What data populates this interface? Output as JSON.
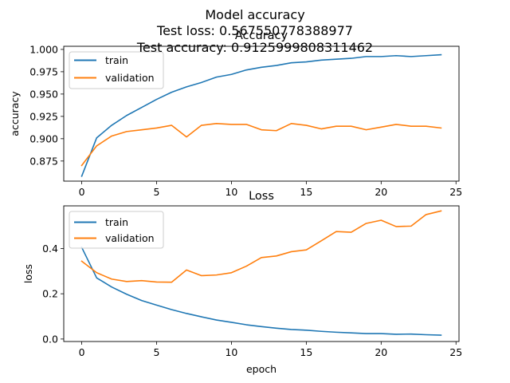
{
  "figure": {
    "suptitle_lines": [
      "Model accuracy",
      "Test loss: 0.567550778388977",
      "Test accuracy: 0.9125999808311462"
    ],
    "colors": {
      "train": "#1f77b4",
      "validation": "#ff7f0e"
    }
  },
  "chart_data": [
    {
      "type": "line",
      "title": "Accuracy",
      "xlabel": "",
      "ylabel": "accuracy",
      "xlim": [
        -1.2,
        25.2
      ],
      "ylim": [
        0.8525,
        1.0035
      ],
      "xticks": [
        0,
        5,
        10,
        15,
        20,
        25
      ],
      "yticks": [
        0.875,
        0.9,
        0.925,
        0.95,
        0.975,
        1.0
      ],
      "ytick_labels": [
        "0.875",
        "0.900",
        "0.925",
        "0.950",
        "0.975",
        "1.000"
      ],
      "legend": "top-left",
      "grid": false,
      "x": [
        0,
        1,
        2,
        3,
        4,
        5,
        6,
        7,
        8,
        9,
        10,
        11,
        12,
        13,
        14,
        15,
        16,
        17,
        18,
        19,
        20,
        21,
        22,
        23,
        24
      ],
      "series": [
        {
          "name": "train",
          "color": "#1f77b4",
          "values": [
            0.858,
            0.901,
            0.915,
            0.926,
            0.935,
            0.944,
            0.952,
            0.958,
            0.963,
            0.969,
            0.972,
            0.977,
            0.98,
            0.982,
            0.985,
            0.986,
            0.988,
            0.989,
            0.99,
            0.992,
            0.992,
            0.993,
            0.992,
            0.993,
            0.994
          ]
        },
        {
          "name": "validation",
          "color": "#ff7f0e",
          "values": [
            0.87,
            0.892,
            0.903,
            0.908,
            0.91,
            0.912,
            0.915,
            0.902,
            0.915,
            0.917,
            0.916,
            0.916,
            0.91,
            0.909,
            0.917,
            0.915,
            0.911,
            0.914,
            0.914,
            0.91,
            0.913,
            0.916,
            0.914,
            0.914,
            0.912
          ]
        }
      ]
    },
    {
      "type": "line",
      "title": "Loss",
      "xlabel": "epoch",
      "ylabel": "loss",
      "xlim": [
        -1.2,
        25.2
      ],
      "ylim": [
        -0.011,
        0.5885
      ],
      "xticks": [
        0,
        5,
        10,
        15,
        20,
        25
      ],
      "yticks": [
        0.0,
        0.2,
        0.4
      ],
      "ytick_labels": [
        "0.0",
        "0.2",
        "0.4"
      ],
      "legend": "top-left",
      "grid": false,
      "x": [
        0,
        1,
        2,
        3,
        4,
        5,
        6,
        7,
        8,
        9,
        10,
        11,
        12,
        13,
        14,
        15,
        16,
        17,
        18,
        19,
        20,
        21,
        22,
        23,
        24
      ],
      "series": [
        {
          "name": "train",
          "color": "#1f77b4",
          "values": [
            0.405,
            0.27,
            0.23,
            0.198,
            0.17,
            0.15,
            0.13,
            0.113,
            0.098,
            0.084,
            0.074,
            0.063,
            0.055,
            0.048,
            0.042,
            0.039,
            0.034,
            0.03,
            0.027,
            0.024,
            0.024,
            0.021,
            0.022,
            0.019,
            0.017
          ]
        },
        {
          "name": "validation",
          "color": "#ff7f0e",
          "values": [
            0.344,
            0.293,
            0.265,
            0.254,
            0.258,
            0.252,
            0.251,
            0.305,
            0.28,
            0.283,
            0.293,
            0.322,
            0.36,
            0.367,
            0.386,
            0.394,
            0.434,
            0.475,
            0.472,
            0.511,
            0.525,
            0.497,
            0.499,
            0.55,
            0.566
          ]
        }
      ]
    }
  ]
}
